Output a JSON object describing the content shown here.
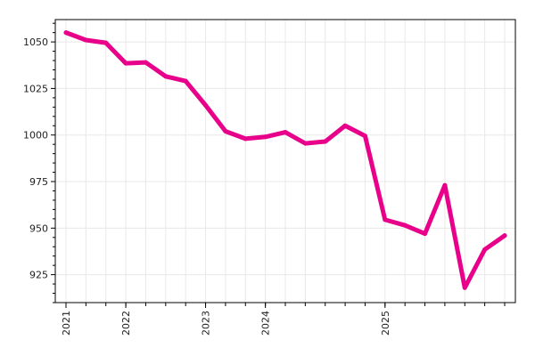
{
  "chart_data": {
    "type": "line",
    "title": "",
    "xlabel": "",
    "ylabel": "",
    "x_axis": {
      "ticks": [
        "2021",
        "2022",
        "2023",
        "2024",
        "2025"
      ],
      "tick_indices": [
        0,
        3,
        7,
        10,
        16
      ]
    },
    "y_axis": {
      "ylim": [
        910,
        1062
      ],
      "ticks": [
        925,
        950,
        975,
        1000,
        1025,
        1050
      ]
    },
    "grid": true,
    "legend": "none",
    "series": [
      {
        "color": "#e8008a",
        "values": [
          1055,
          1051,
          1049.5,
          1038.5,
          1039,
          1031.5,
          1029,
          1016,
          1002,
          998,
          999,
          1001.5,
          995.5,
          996.5,
          1005,
          999.5,
          954.5,
          951.5,
          947,
          973,
          918,
          938.5,
          946
        ]
      }
    ]
  }
}
